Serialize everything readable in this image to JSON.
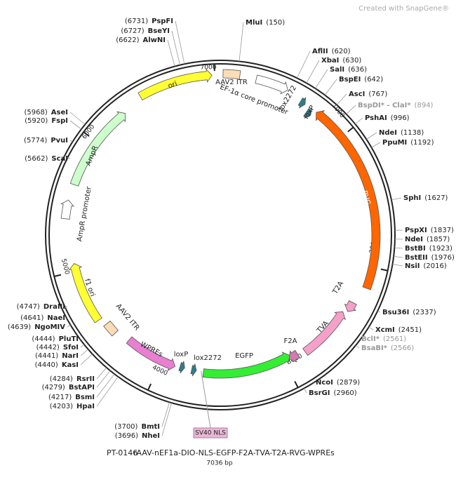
{
  "header": {
    "watermark": "Created with SnapGene®"
  },
  "ticks": [
    "7000",
    "1000",
    "2000",
    "3000",
    "4000",
    "5000",
    "6000"
  ],
  "features": [
    {
      "label": "ori"
    },
    {
      "label": "AAV2 ITR"
    },
    {
      "label": "EF-1α core promoter"
    },
    {
      "label": "lox2272"
    },
    {
      "label": "loxP"
    },
    {
      "label": "RVG"
    },
    {
      "label": "T2A"
    },
    {
      "label": "TVA"
    },
    {
      "label": "F2A"
    },
    {
      "label": "EGFP"
    },
    {
      "label": "lox2272"
    },
    {
      "label": "loxP"
    },
    {
      "label": "WPREs"
    },
    {
      "label": "AAV2 ITR"
    },
    {
      "label": "f1 ori"
    },
    {
      "label": "AmpR promoter"
    },
    {
      "label": "AmpR"
    },
    {
      "label": "SV40 NLS"
    }
  ],
  "enzymes": [
    {
      "name": "PspFI",
      "position": "(6731)"
    },
    {
      "name": "BseYI",
      "position": "(6727)"
    },
    {
      "name": "AlwNI",
      "position": "(6622)"
    },
    {
      "name": "MluI",
      "position": "(150)"
    },
    {
      "name": "AflII",
      "position": "(620)"
    },
    {
      "name": "XbaI",
      "position": "(630)"
    },
    {
      "name": "SalI",
      "position": "(636)"
    },
    {
      "name": "BspEI",
      "position": "(642)"
    },
    {
      "name": "AscI",
      "position": "(767)"
    },
    {
      "name": "BspDI* - ClaI*",
      "position": "(894)"
    },
    {
      "name": "PshAI",
      "position": "(996)"
    },
    {
      "name": "NdeI",
      "position": "(1138)"
    },
    {
      "name": "PpuMI",
      "position": "(1192)"
    },
    {
      "name": "SphI",
      "position": "(1627)"
    },
    {
      "name": "PspXI",
      "position": "(1837)"
    },
    {
      "name": "NdeI",
      "position": "(1857)"
    },
    {
      "name": "BstBI",
      "position": "(1923)"
    },
    {
      "name": "BstEII",
      "position": "(1976)"
    },
    {
      "name": "NsiI",
      "position": "(2016)"
    },
    {
      "name": "Bsu36I",
      "position": "(2337)"
    },
    {
      "name": "XcmI",
      "position": "(2451)"
    },
    {
      "name": "BclI*",
      "position": "(2561)"
    },
    {
      "name": "BsaBI*",
      "position": "(2566)"
    },
    {
      "name": "NcoI",
      "position": "(2879)"
    },
    {
      "name": "BsrGI",
      "position": "(2960)"
    },
    {
      "name": "AseI",
      "position": "(5968)"
    },
    {
      "name": "FspI",
      "position": "(5920)"
    },
    {
      "name": "PvuI",
      "position": "(5774)"
    },
    {
      "name": "ScaI",
      "position": "(5662)"
    },
    {
      "name": "DraIII",
      "position": "(4747)"
    },
    {
      "name": "NaeI",
      "position": "(4641)"
    },
    {
      "name": "NgoMIV",
      "position": "(4639)"
    },
    {
      "name": "PluTI",
      "position": "(4444)"
    },
    {
      "name": "SfoI",
      "position": "(4442)"
    },
    {
      "name": "NarI",
      "position": "(4441)"
    },
    {
      "name": "KasI",
      "position": "(4440)"
    },
    {
      "name": "RsrII",
      "position": "(4284)"
    },
    {
      "name": "BstAPI",
      "position": "(4279)"
    },
    {
      "name": "BsmI",
      "position": "(4217)"
    },
    {
      "name": "HpaI",
      "position": "(4203)"
    },
    {
      "name": "BmtI",
      "position": "(3700)"
    },
    {
      "name": "NheI",
      "position": "(3696)"
    }
  ],
  "footer": {
    "id": "PT-0146",
    "name": "rAAV-nEF1a-DIO-NLS-EGFP-F2A-TVA-T2A-RVG-WPREs",
    "size": "7036 bp"
  }
}
